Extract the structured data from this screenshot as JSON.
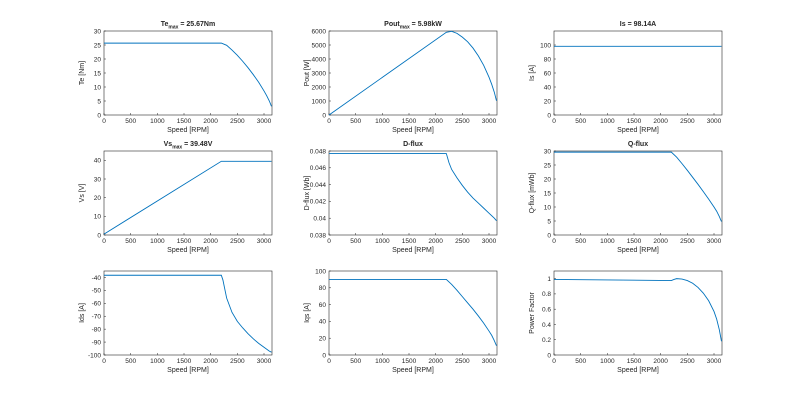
{
  "figure": {
    "background": "#ffffff",
    "line_color": "#0072BD",
    "axis_color": "#262626"
  },
  "chart_data": [
    {
      "type": "line",
      "id": "te",
      "title_main": "Te",
      "title_sub": "max",
      "title_suffix": " = 25.67Nm",
      "xlabel": "Speed [RPM]",
      "ylabel": "Te [Nm]",
      "xlim": [
        0,
        3150
      ],
      "ylim": [
        0,
        30
      ],
      "xticks": [
        0,
        500,
        1000,
        1500,
        2000,
        2500,
        3000
      ],
      "yticks": [
        0,
        5,
        10,
        15,
        20,
        25,
        30
      ],
      "ytick_labels": [
        "0",
        "5",
        "10",
        "15",
        "20",
        "25",
        "30"
      ],
      "series": [
        {
          "name": "Te",
          "x": [
            0,
            2200,
            2300,
            2400,
            2500,
            2600,
            2700,
            2800,
            2900,
            3000,
            3050,
            3100,
            3140
          ],
          "y": [
            25.67,
            25.67,
            24.9,
            23.2,
            21.3,
            19.2,
            16.9,
            14.4,
            11.7,
            8.6,
            6.9,
            5.0,
            3.1
          ]
        }
      ]
    },
    {
      "type": "line",
      "id": "pout",
      "title_main": "Pout",
      "title_sub": "max",
      "title_suffix": " = 5.98kW",
      "xlabel": "Speed [RPM]",
      "ylabel": "Pout [W]",
      "xlim": [
        0,
        3150
      ],
      "ylim": [
        0,
        6000
      ],
      "xticks": [
        0,
        500,
        1000,
        1500,
        2000,
        2500,
        3000
      ],
      "yticks": [
        0,
        1000,
        2000,
        3000,
        4000,
        5000,
        6000
      ],
      "ytick_labels": [
        "0",
        "1000",
        "2000",
        "3000",
        "4000",
        "5000",
        "6000"
      ],
      "series": [
        {
          "name": "Pout",
          "x": [
            0,
            2200,
            2300,
            2400,
            2500,
            2600,
            2700,
            2800,
            2900,
            3000,
            3050,
            3100,
            3140
          ],
          "y": [
            0,
            5910,
            5980,
            5830,
            5560,
            5230,
            4780,
            4220,
            3550,
            2700,
            2200,
            1620,
            1020
          ]
        }
      ]
    },
    {
      "type": "line",
      "id": "is",
      "title_main": "Is = 98.14A",
      "title_sub": "",
      "title_suffix": "",
      "xlabel": "Speed [RPM]",
      "ylabel": "Is [A]",
      "xlim": [
        0,
        3150
      ],
      "ylim": [
        0,
        120
      ],
      "xticks": [
        0,
        500,
        1000,
        1500,
        2000,
        2500,
        3000
      ],
      "yticks": [
        0,
        20,
        40,
        60,
        80,
        100
      ],
      "ytick_labels": [
        "0",
        "20",
        "40",
        "60",
        "80",
        "100"
      ],
      "series": [
        {
          "name": "Is",
          "x": [
            0,
            3140
          ],
          "y": [
            98.14,
            98.14
          ]
        }
      ]
    },
    {
      "type": "line",
      "id": "vs",
      "title_main": "Vs",
      "title_sub": "max",
      "title_suffix": " = 39.48V",
      "xlabel": "Speed [RPM]",
      "ylabel": "Vs [V]",
      "xlim": [
        0,
        3150
      ],
      "ylim": [
        0,
        45
      ],
      "xticks": [
        0,
        500,
        1000,
        1500,
        2000,
        2500,
        3000
      ],
      "yticks": [
        0,
        10,
        20,
        30,
        40
      ],
      "ytick_labels": [
        "0",
        "10",
        "20",
        "30",
        "40"
      ],
      "series": [
        {
          "name": "Vs",
          "x": [
            0,
            2200,
            3140
          ],
          "y": [
            0.5,
            39.48,
            39.48
          ]
        }
      ]
    },
    {
      "type": "line",
      "id": "dflux",
      "title_main": "D-flux",
      "title_sub": "",
      "title_suffix": "",
      "xlabel": "Speed [RPM]",
      "ylabel": "D-flux [Wb]",
      "xlim": [
        0,
        3150
      ],
      "ylim": [
        0.038,
        0.048
      ],
      "xticks": [
        0,
        500,
        1000,
        1500,
        2000,
        2500,
        3000
      ],
      "yticks": [
        0.038,
        0.04,
        0.042,
        0.044,
        0.046,
        0.048
      ],
      "ytick_labels": [
        "0.038",
        "0.04",
        "0.042",
        "0.044",
        "0.046",
        "0.048"
      ],
      "series": [
        {
          "name": "D-flux",
          "x": [
            0,
            2200,
            2250,
            2300,
            2400,
            2500,
            2600,
            2700,
            2800,
            2900,
            3000,
            3100,
            3140
          ],
          "y": [
            0.0477,
            0.0477,
            0.0466,
            0.0458,
            0.0448,
            0.0439,
            0.0431,
            0.0424,
            0.0418,
            0.0412,
            0.0406,
            0.04,
            0.0397
          ]
        }
      ]
    },
    {
      "type": "line",
      "id": "qflux",
      "title_main": "Q-flux",
      "title_sub": "",
      "title_suffix": "",
      "xlabel": "Speed [RPM]",
      "ylabel": "Q-flux [mWb]",
      "xlim": [
        0,
        3150
      ],
      "ylim": [
        0,
        30
      ],
      "xticks": [
        0,
        500,
        1000,
        1500,
        2000,
        2500,
        3000
      ],
      "yticks": [
        0,
        5,
        10,
        15,
        20,
        25,
        30
      ],
      "ytick_labels": [
        "0",
        "5",
        "10",
        "15",
        "20",
        "25",
        "30"
      ],
      "series": [
        {
          "name": "Q-flux",
          "x": [
            0,
            2200,
            2300,
            2400,
            2500,
            2600,
            2700,
            2800,
            2900,
            3000,
            3050,
            3100,
            3140
          ],
          "y": [
            29.6,
            29.6,
            27.8,
            25.5,
            23.1,
            20.6,
            18.1,
            15.5,
            12.8,
            10.0,
            8.5,
            6.6,
            4.8
          ]
        }
      ]
    },
    {
      "type": "line",
      "id": "ids",
      "title_main": "",
      "title_sub": "",
      "title_suffix": "",
      "xlabel": "Speed [RPM]",
      "ylabel": "Ids [A]",
      "xlim": [
        0,
        3150
      ],
      "ylim": [
        -100,
        -35
      ],
      "xticks": [
        0,
        500,
        1000,
        1500,
        2000,
        2500,
        3000
      ],
      "yticks": [
        -100,
        -90,
        -80,
        -70,
        -60,
        -50,
        -40
      ],
      "ytick_labels": [
        "-100",
        "-90",
        "-80",
        "-70",
        "-60",
        "-50",
        "-40"
      ],
      "series": [
        {
          "name": "Ids",
          "x": [
            0,
            2200,
            2230,
            2260,
            2300,
            2400,
            2500,
            2600,
            2700,
            2800,
            2900,
            3000,
            3100,
            3140
          ],
          "y": [
            -38.3,
            -38.3,
            -42,
            -48,
            -56,
            -67,
            -74,
            -79,
            -83.5,
            -87.5,
            -91,
            -94,
            -97,
            -97.8
          ]
        }
      ]
    },
    {
      "type": "line",
      "id": "iqs",
      "title_main": "",
      "title_sub": "",
      "title_suffix": "",
      "xlabel": "Speed [RPM]",
      "ylabel": "Iqs [A]",
      "xlim": [
        0,
        3150
      ],
      "ylim": [
        0,
        100
      ],
      "xticks": [
        0,
        500,
        1000,
        1500,
        2000,
        2500,
        3000
      ],
      "yticks": [
        0,
        20,
        40,
        60,
        80,
        100
      ],
      "ytick_labels": [
        "0",
        "20",
        "40",
        "60",
        "80",
        "100"
      ],
      "series": [
        {
          "name": "Iqs",
          "x": [
            0,
            2200,
            2300,
            2400,
            2500,
            2600,
            2700,
            2800,
            2900,
            3000,
            3050,
            3100,
            3140
          ],
          "y": [
            90,
            90,
            84,
            77,
            69.5,
            62,
            54.5,
            46.5,
            38,
            28.5,
            23.5,
            17,
            11
          ]
        }
      ]
    },
    {
      "type": "line",
      "id": "pf",
      "title_main": "",
      "title_sub": "",
      "title_suffix": "",
      "xlabel": "Speed [RPM]",
      "ylabel": "Power Factor",
      "xlim": [
        0,
        3150
      ],
      "ylim": [
        0,
        1.1
      ],
      "xticks": [
        0,
        500,
        1000,
        1500,
        2000,
        2500,
        3000
      ],
      "yticks": [
        0,
        0.2,
        0.4,
        0.6,
        0.8,
        1.0
      ],
      "ytick_labels": [
        "0",
        "0.2",
        "0.4",
        "0.6",
        "0.8",
        "1"
      ],
      "series": [
        {
          "name": "Power Factor",
          "x": [
            0,
            2200,
            2250,
            2300,
            2400,
            2500,
            2600,
            2700,
            2800,
            2900,
            3000,
            3050,
            3100,
            3140
          ],
          "y": [
            0.99,
            0.975,
            0.99,
            1.0,
            0.995,
            0.975,
            0.94,
            0.885,
            0.81,
            0.71,
            0.57,
            0.47,
            0.33,
            0.18
          ]
        }
      ]
    }
  ]
}
